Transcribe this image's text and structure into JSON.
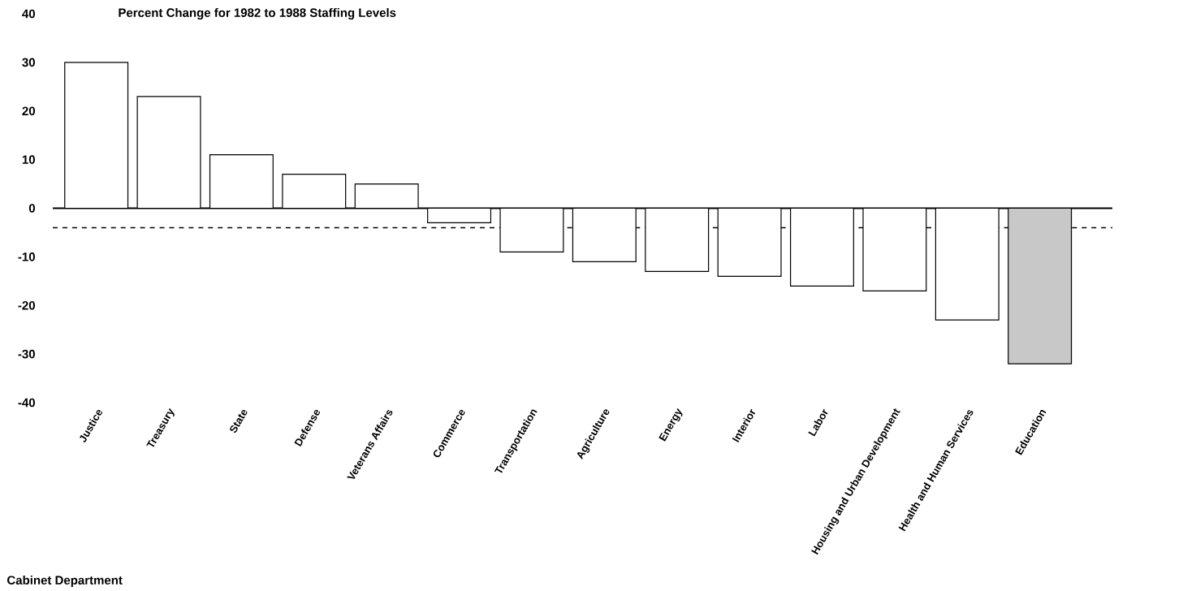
{
  "chart_data": {
    "type": "bar",
    "title": "Percent Change for 1982 to 1988 Staffing Levels",
    "annotations": [
      "Cabinet Department"
    ],
    "categories": [
      "Justice",
      "Treasury",
      "State",
      "Defense",
      "Veterans Affairs",
      "Commerce",
      "Transportation",
      "Agriculture",
      "Energy",
      "Interior",
      "Labor",
      "Housing and Urban Development",
      "Health and Human Services",
      "Education"
    ],
    "values": [
      30,
      23,
      11,
      7,
      5,
      -3,
      -9,
      -11,
      -13,
      -14,
      -16,
      -17,
      -23,
      -32
    ],
    "colors": [
      "#ffffff",
      "#ffffff",
      "#ffffff",
      "#ffffff",
      "#ffffff",
      "#ffffff",
      "#ffffff",
      "#ffffff",
      "#ffffff",
      "#ffffff",
      "#ffffff",
      "#ffffff",
      "#ffffff",
      "#c8c8c8"
    ],
    "ylim": [
      -40,
      40
    ],
    "yticks": [
      -40,
      -30,
      -20,
      -10,
      0,
      10,
      20,
      30,
      40
    ],
    "ref_lines": [
      {
        "axis": "y",
        "value": -4,
        "line_style": "dashed",
        "color": "#000000"
      }
    ]
  }
}
